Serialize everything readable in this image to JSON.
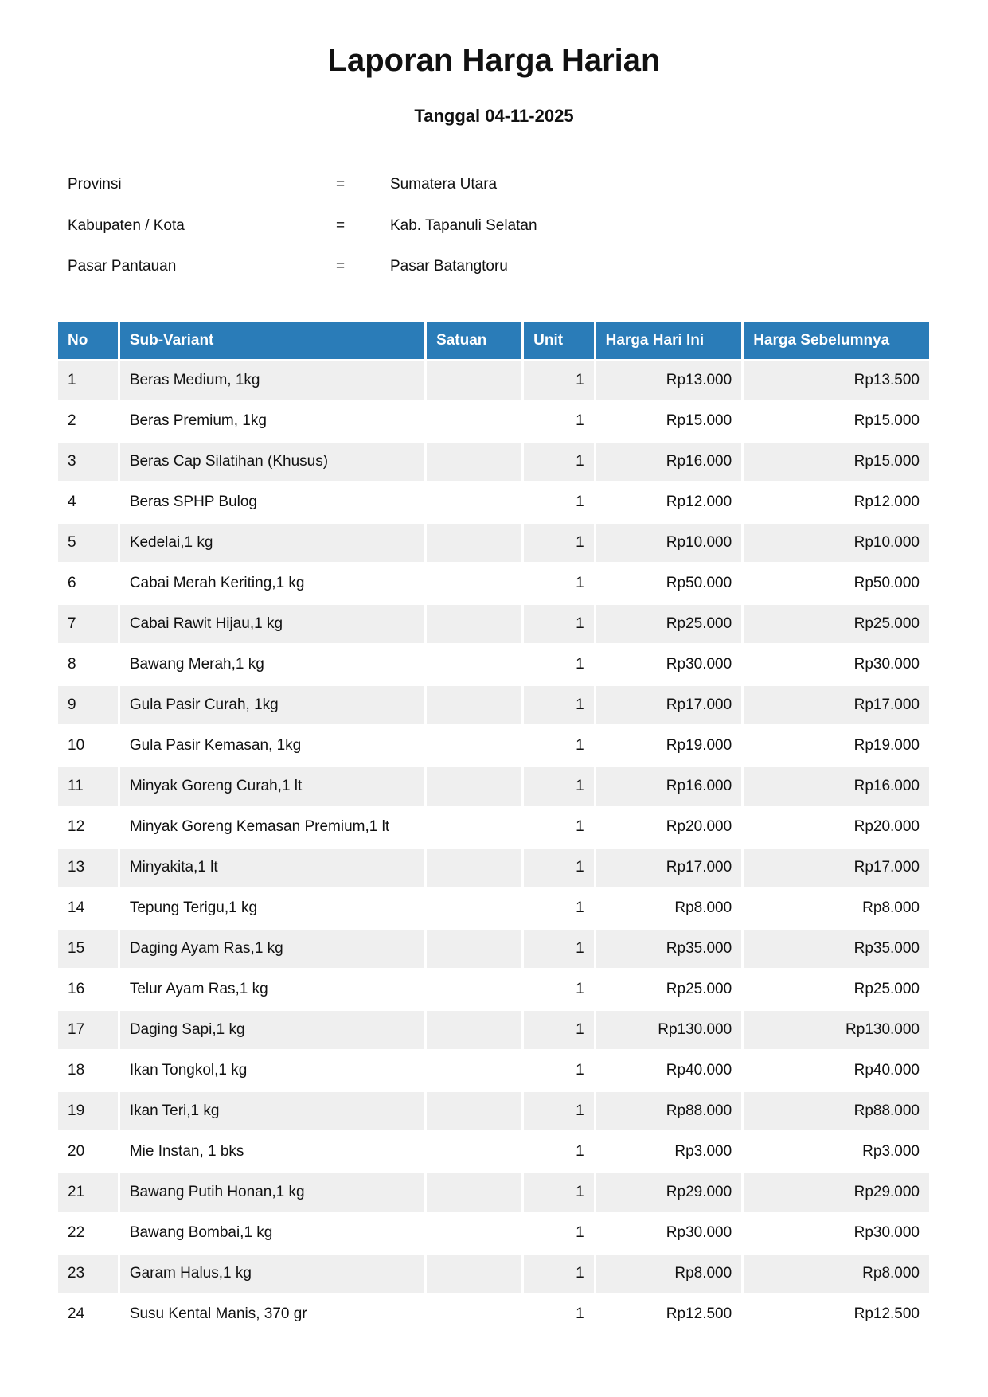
{
  "title": "Laporan Harga Harian",
  "subtitle": "Tanggal 04-11-2025",
  "info": [
    {
      "label": "Provinsi",
      "eq": "=",
      "value": "Sumatera Utara"
    },
    {
      "label": "Kabupaten / Kota",
      "eq": "=",
      "value": "Kab. Tapanuli Selatan"
    },
    {
      "label": "Pasar Pantauan",
      "eq": "=",
      "value": "Pasar Batangtoru"
    }
  ],
  "table": {
    "headers": [
      "No",
      "Sub-Variant",
      "Satuan",
      "Unit",
      "Harga Hari Ini",
      "Harga Sebelumnya"
    ],
    "rows": [
      [
        "1",
        "Beras Medium, 1kg",
        "",
        "1",
        "Rp13.000",
        "Rp13.500"
      ],
      [
        "2",
        "Beras Premium, 1kg",
        "",
        "1",
        "Rp15.000",
        "Rp15.000"
      ],
      [
        "3",
        "Beras Cap Silatihan (Khusus)",
        "",
        "1",
        "Rp16.000",
        "Rp15.000"
      ],
      [
        "4",
        "Beras SPHP Bulog",
        "",
        "1",
        "Rp12.000",
        "Rp12.000"
      ],
      [
        "5",
        "Kedelai,1 kg",
        "",
        "1",
        "Rp10.000",
        "Rp10.000"
      ],
      [
        "6",
        "Cabai Merah Keriting,1 kg",
        "",
        "1",
        "Rp50.000",
        "Rp50.000"
      ],
      [
        "7",
        "Cabai Rawit Hijau,1 kg",
        "",
        "1",
        "Rp25.000",
        "Rp25.000"
      ],
      [
        "8",
        "Bawang Merah,1 kg",
        "",
        "1",
        "Rp30.000",
        "Rp30.000"
      ],
      [
        "9",
        "Gula Pasir Curah, 1kg",
        "",
        "1",
        "Rp17.000",
        "Rp17.000"
      ],
      [
        "10",
        "Gula Pasir Kemasan, 1kg",
        "",
        "1",
        "Rp19.000",
        "Rp19.000"
      ],
      [
        "11",
        "Minyak Goreng Curah,1 lt",
        "",
        "1",
        "Rp16.000",
        "Rp16.000"
      ],
      [
        "12",
        "Minyak Goreng Kemasan Premium,1 lt",
        "",
        "1",
        "Rp20.000",
        "Rp20.000"
      ],
      [
        "13",
        "Minyakita,1 lt",
        "",
        "1",
        "Rp17.000",
        "Rp17.000"
      ],
      [
        "14",
        "Tepung Terigu,1 kg",
        "",
        "1",
        "Rp8.000",
        "Rp8.000"
      ],
      [
        "15",
        "Daging Ayam Ras,1 kg",
        "",
        "1",
        "Rp35.000",
        "Rp35.000"
      ],
      [
        "16",
        "Telur Ayam Ras,1 kg",
        "",
        "1",
        "Rp25.000",
        "Rp25.000"
      ],
      [
        "17",
        "Daging Sapi,1 kg",
        "",
        "1",
        "Rp130.000",
        "Rp130.000"
      ],
      [
        "18",
        "Ikan Tongkol,1 kg",
        "",
        "1",
        "Rp40.000",
        "Rp40.000"
      ],
      [
        "19",
        "Ikan Teri,1 kg",
        "",
        "1",
        "Rp88.000",
        "Rp88.000"
      ],
      [
        "20",
        "Mie Instan, 1 bks",
        "",
        "1",
        "Rp3.000",
        "Rp3.000"
      ],
      [
        "21",
        "Bawang Putih Honan,1 kg",
        "",
        "1",
        "Rp29.000",
        "Rp29.000"
      ],
      [
        "22",
        "Bawang Bombai,1 kg",
        "",
        "1",
        "Rp30.000",
        "Rp30.000"
      ],
      [
        "23",
        "Garam Halus,1 kg",
        "",
        "1",
        "Rp8.000",
        "Rp8.000"
      ],
      [
        "24",
        "Susu Kental Manis, 370 gr",
        "",
        "1",
        "Rp12.500",
        "Rp12.500"
      ]
    ]
  },
  "colors": {
    "header_bg": "#2a7cb8",
    "stripe": "#efefef"
  }
}
